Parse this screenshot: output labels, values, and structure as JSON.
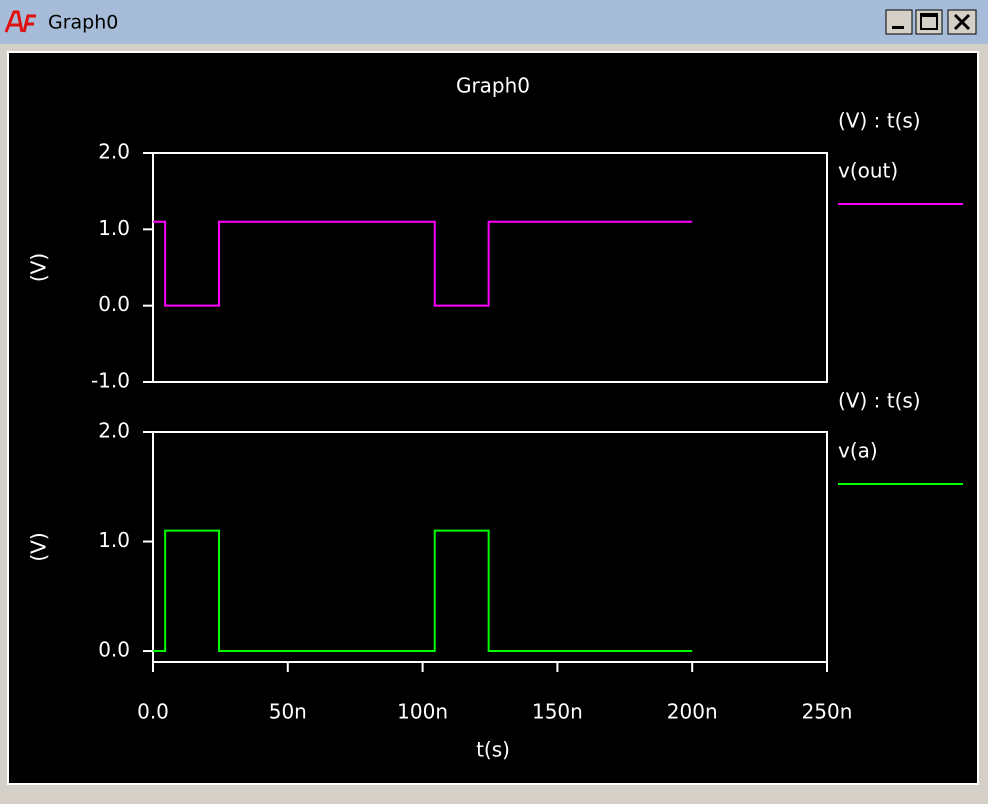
{
  "window": {
    "title": "Graph0"
  },
  "chart_data": [
    {
      "type": "line",
      "title": "Graph0",
      "ylabel": "(V)",
      "legend_title": "(V) : t(s)",
      "xlim": [
        0,
        2.5e-07
      ],
      "ylim": [
        -1,
        2
      ],
      "yticks": [
        {
          "value": -1,
          "label": "-1.0"
        },
        {
          "value": 0,
          "label": "0.0"
        },
        {
          "value": 1,
          "label": "1.0"
        },
        {
          "value": 2,
          "label": "2.0"
        }
      ],
      "x": [
        0,
        4.5e-09,
        4.5e-09,
        2.45e-08,
        2.45e-08,
        1.045e-07,
        1.045e-07,
        1.245e-07,
        1.245e-07,
        2e-07
      ],
      "series": [
        {
          "name": "v(out)",
          "color": "#ff00ff",
          "values": [
            1.1,
            1.1,
            0,
            0,
            1.1,
            1.1,
            0,
            0,
            1.1,
            1.1
          ]
        }
      ]
    },
    {
      "type": "line",
      "ylabel": "(V)",
      "legend_title": "(V) : t(s)",
      "xlabel": "t(s)",
      "xlim": [
        0,
        2.5e-07
      ],
      "xticks": [
        {
          "value": 0,
          "label": "0.0"
        },
        {
          "value": 5e-08,
          "label": "50n"
        },
        {
          "value": 1e-07,
          "label": "100n"
        },
        {
          "value": 1.5e-07,
          "label": "150n"
        },
        {
          "value": 2e-07,
          "label": "200n"
        },
        {
          "value": 2.5e-07,
          "label": "250n"
        }
      ],
      "ylim": [
        -0.1,
        2
      ],
      "yticks": [
        {
          "value": 0,
          "label": "0.0"
        },
        {
          "value": 1,
          "label": "1.0"
        },
        {
          "value": 2,
          "label": "2.0"
        }
      ],
      "x": [
        0,
        4.5e-09,
        4.5e-09,
        2.45e-08,
        2.45e-08,
        1.045e-07,
        1.045e-07,
        1.245e-07,
        1.245e-07,
        2e-07
      ],
      "series": [
        {
          "name": "v(a)",
          "color": "#00ff00",
          "values": [
            0,
            0,
            1.1,
            1.1,
            0,
            0,
            1.1,
            1.1,
            0,
            0
          ]
        }
      ]
    }
  ]
}
